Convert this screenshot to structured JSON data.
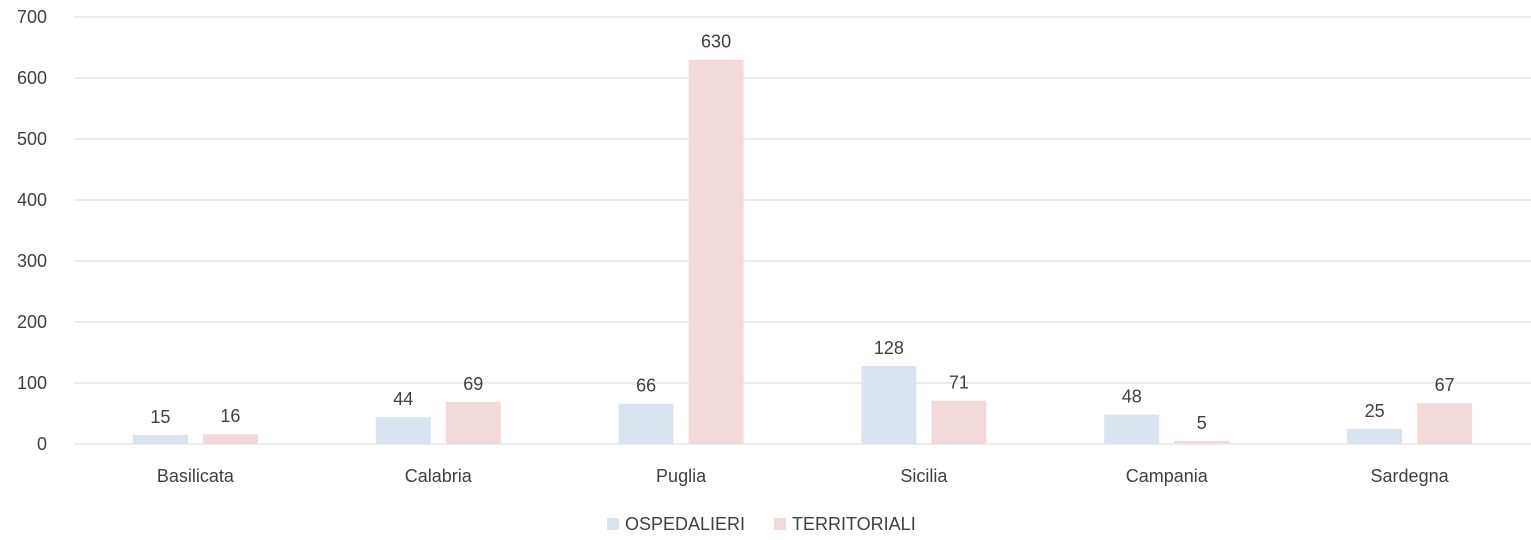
{
  "chart_data": {
    "type": "bar",
    "title": "",
    "xlabel": "",
    "ylabel": "",
    "categories": [
      "Basilicata",
      "Calabria",
      "Puglia",
      "Sicilia",
      "Campania",
      "Sardegna"
    ],
    "series": [
      {
        "name": "OSPEDALIERI",
        "values": [
          15,
          44,
          66,
          128,
          48,
          25
        ],
        "color": "#dae3f0"
      },
      {
        "name": "TERRITORIALI",
        "values": [
          16,
          69,
          630,
          71,
          5,
          67
        ],
        "color": "#f2dada"
      }
    ],
    "ylim": [
      0,
      700
    ],
    "yticks": [
      0,
      100,
      200,
      300,
      400,
      500,
      600,
      700
    ],
    "grid": true,
    "data_labels": true,
    "legend_position": "bottom"
  }
}
